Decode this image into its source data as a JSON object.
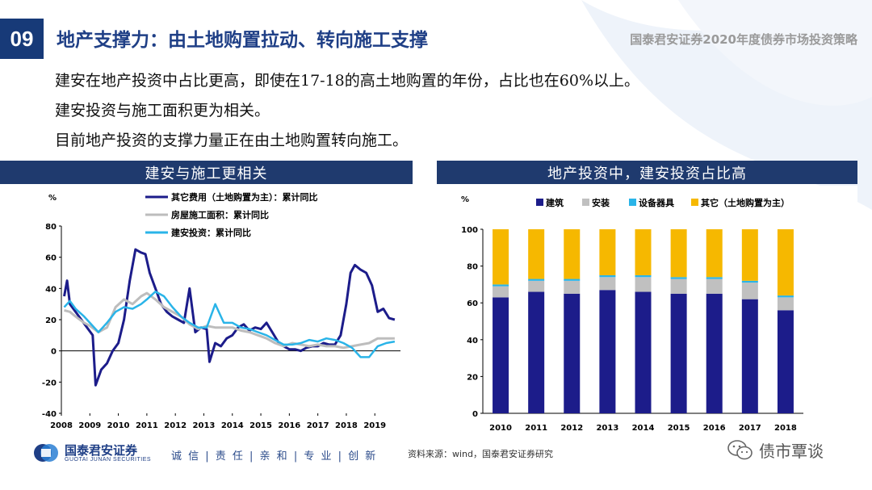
{
  "header": {
    "number": "09",
    "title": "地产支撑力：由土地购置拉动、转向施工支撑",
    "firm_title": "国泰君安证券2020年度债券市场投资策略"
  },
  "bullets": [
    "建安在地产投资中占比更高，即使在17-18的高土地购置的年份，占比也在60%以上。",
    "建安投资与施工面积更为相关。",
    "目前地产投资的支撑力量正在由土地购置转向施工。"
  ],
  "banners": {
    "left": "建安与施工更相关",
    "right": "地产投资中，建安投资占比高"
  },
  "colors": {
    "navy": "#1f3a6e",
    "title_blue": "#1f3f86"
  },
  "chart_data": [
    {
      "type": "line",
      "ylabel": "%",
      "ylim": [
        -40,
        80
      ],
      "yticks": [
        -40,
        -20,
        0,
        20,
        40,
        60,
        80
      ],
      "xlim": [
        2008,
        2019.9
      ],
      "xticks": [
        "2008",
        "2009",
        "2010",
        "2011",
        "2012",
        "2013",
        "2014",
        "2015",
        "2016",
        "2017",
        "2018",
        "2019"
      ],
      "legend_position": "top",
      "series": [
        {
          "name": "其它费用（土地购置为主）：累计同比",
          "color": "#1c1c8a",
          "x": [
            2008.1,
            2008.2,
            2008.3,
            2008.5,
            2008.7,
            2008.9,
            2009.1,
            2009.2,
            2009.4,
            2009.6,
            2009.8,
            2010.0,
            2010.2,
            2010.4,
            2010.6,
            2010.8,
            2010.95,
            2011.1,
            2011.3,
            2011.5,
            2011.7,
            2011.9,
            2012.1,
            2012.3,
            2012.5,
            2012.7,
            2012.9,
            2013.1,
            2013.2,
            2013.4,
            2013.6,
            2013.8,
            2014.0,
            2014.2,
            2014.4,
            2014.6,
            2014.8,
            2015.0,
            2015.2,
            2015.4,
            2015.6,
            2015.8,
            2016.0,
            2016.2,
            2016.4,
            2016.6,
            2016.8,
            2017.0,
            2017.2,
            2017.4,
            2017.6,
            2017.8,
            2018.0,
            2018.15,
            2018.3,
            2018.5,
            2018.7,
            2018.9,
            2019.1,
            2019.3,
            2019.5,
            2019.7
          ],
          "values": [
            35,
            45,
            30,
            25,
            20,
            15,
            10,
            -22,
            -12,
            -8,
            0,
            5,
            20,
            45,
            65,
            63,
            62,
            50,
            40,
            30,
            25,
            22,
            20,
            18,
            40,
            12,
            15,
            14,
            -7,
            5,
            3,
            8,
            10,
            15,
            17,
            13,
            15,
            14,
            18,
            12,
            6,
            3,
            1,
            1,
            0,
            2,
            3,
            3,
            5,
            4,
            4,
            10,
            30,
            50,
            55,
            52,
            50,
            42,
            25,
            27,
            21,
            20
          ]
        },
        {
          "name": "房屋施工面积：累计同比",
          "color": "#bdbdbd",
          "x": [
            2008.1,
            2008.3,
            2008.5,
            2008.8,
            2009.0,
            2009.3,
            2009.6,
            2009.9,
            2010.2,
            2010.5,
            2010.8,
            2011.0,
            2011.3,
            2011.6,
            2011.9,
            2012.2,
            2012.5,
            2012.8,
            2013.1,
            2013.4,
            2013.7,
            2014.0,
            2014.3,
            2014.6,
            2014.9,
            2015.2,
            2015.5,
            2015.8,
            2016.1,
            2016.4,
            2016.7,
            2017.0,
            2017.3,
            2017.6,
            2017.9,
            2018.2,
            2018.5,
            2018.8,
            2019.1,
            2019.4,
            2019.7
          ],
          "values": [
            26,
            25,
            22,
            18,
            16,
            12,
            15,
            28,
            33,
            30,
            35,
            37,
            33,
            28,
            25,
            22,
            17,
            14,
            16,
            15,
            15,
            15,
            13,
            12,
            10,
            8,
            5,
            3,
            5,
            4,
            3,
            4,
            3,
            3,
            2,
            3,
            4,
            5,
            8,
            8,
            8
          ]
        },
        {
          "name": "建安投资：累计同比",
          "color": "#2ab4e8",
          "x": [
            2008.1,
            2008.3,
            2008.5,
            2008.8,
            2009.0,
            2009.3,
            2009.6,
            2009.9,
            2010.2,
            2010.5,
            2010.8,
            2011.0,
            2011.3,
            2011.6,
            2011.9,
            2012.2,
            2012.5,
            2012.8,
            2013.1,
            2013.4,
            2013.7,
            2014.0,
            2014.3,
            2014.6,
            2014.9,
            2015.2,
            2015.5,
            2015.8,
            2016.1,
            2016.4,
            2016.7,
            2017.0,
            2017.3,
            2017.6,
            2017.9,
            2018.2,
            2018.5,
            2018.8,
            2019.1,
            2019.4,
            2019.7
          ],
          "values": [
            28,
            32,
            27,
            22,
            18,
            12,
            18,
            25,
            28,
            27,
            30,
            33,
            38,
            35,
            28,
            22,
            18,
            15,
            15,
            30,
            18,
            18,
            15,
            14,
            12,
            10,
            7,
            4,
            4,
            5,
            7,
            6,
            8,
            7,
            5,
            2,
            -4,
            -4,
            3,
            5,
            6
          ]
        }
      ]
    },
    {
      "type": "bar",
      "stacked": true,
      "ylabel": "%",
      "ylim": [
        0,
        100
      ],
      "yticks": [
        0,
        20,
        40,
        60,
        80,
        100
      ],
      "legend_position": "top",
      "categories": [
        "2010",
        "2011",
        "2012",
        "2013",
        "2014",
        "2015",
        "2016",
        "2017",
        "2018"
      ],
      "series": [
        {
          "name": "建筑",
          "color": "#1c1c8a",
          "values": [
            63,
            66,
            65,
            67,
            66,
            65,
            65,
            62,
            56
          ]
        },
        {
          "name": "安装",
          "color": "#c0c0c0",
          "values": [
            6,
            6,
            7,
            7,
            8,
            8,
            8,
            9,
            7
          ]
        },
        {
          "name": "设备器具",
          "color": "#2ab4e8",
          "values": [
            1,
            1,
            1,
            1,
            1,
            1,
            1,
            1,
            1
          ]
        },
        {
          "name": "其它（土地购置为主）",
          "color": "#f6b800",
          "values": [
            30,
            27,
            27,
            25,
            25,
            26,
            26,
            28,
            36
          ]
        }
      ]
    }
  ],
  "footer": {
    "logo_cn": "国泰君安证券",
    "logo_en": "GUOTAI JUNAN SECURITIES",
    "motto": "诚 信 | 责 任 | 亲 和 | 专 业 | 创 新",
    "source": "资料来源：wind，国泰君安证券研究",
    "wechat": "债市覃谈"
  }
}
